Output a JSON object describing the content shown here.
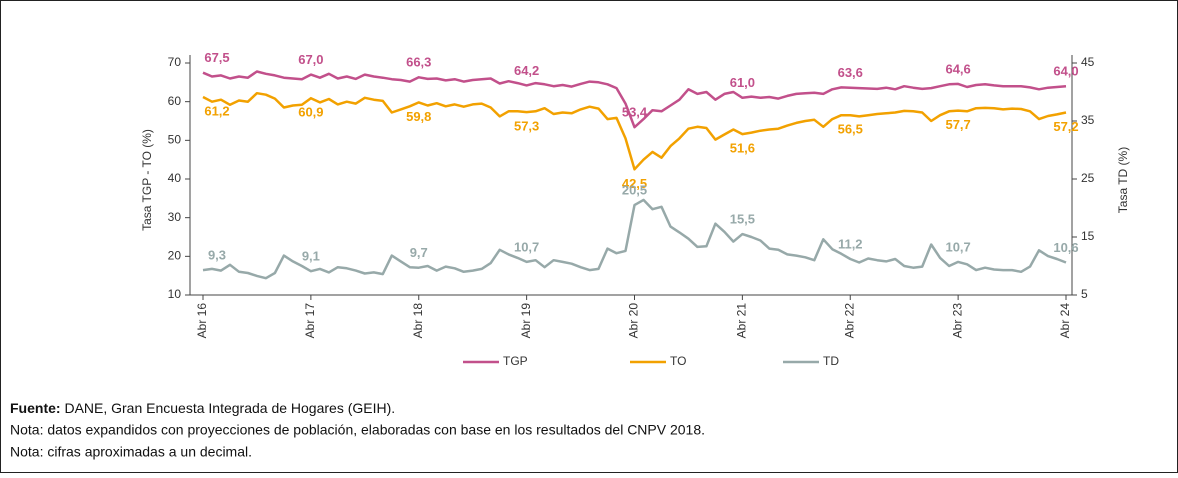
{
  "chart_data": {
    "type": "line",
    "ylabel": "Tasa TGP - TO (%)",
    "y2label": "Tasa TD (%)",
    "categories": [
      "Abr 16",
      null,
      null,
      null,
      null,
      null,
      null,
      null,
      null,
      null,
      null,
      null,
      "Abr 17",
      null,
      null,
      null,
      null,
      null,
      null,
      null,
      null,
      null,
      null,
      null,
      "Abr 18",
      null,
      null,
      null,
      null,
      null,
      null,
      null,
      null,
      null,
      null,
      null,
      "Abr 19",
      null,
      null,
      null,
      null,
      null,
      null,
      null,
      null,
      null,
      null,
      null,
      "Abr 20",
      null,
      null,
      null,
      null,
      null,
      null,
      null,
      null,
      null,
      null,
      null,
      "Abr 21",
      null,
      null,
      null,
      null,
      null,
      null,
      null,
      null,
      null,
      null,
      null,
      "Abr 22",
      null,
      null,
      null,
      null,
      null,
      null,
      null,
      null,
      null,
      null,
      null,
      "Abr 23",
      null,
      null,
      null,
      null,
      null,
      null,
      null,
      null,
      null,
      null,
      null,
      "Abr 24"
    ],
    "ylim": [
      10,
      70
    ],
    "yticks": [
      10,
      20,
      30,
      40,
      50,
      60,
      70
    ],
    "y2lim": [
      5,
      45
    ],
    "y2ticks": [
      5,
      15,
      25,
      35,
      45
    ],
    "legend": "bottom",
    "series": [
      {
        "name": "TGP",
        "color": "#c2508b",
        "label_position": "above",
        "values": [
          67.5,
          66.5,
          66.8,
          66.0,
          66.5,
          66.2,
          67.8,
          67.2,
          66.8,
          66.2,
          66.0,
          65.8,
          67.0,
          66.2,
          67.2,
          66.0,
          66.5,
          65.9,
          67.0,
          66.5,
          66.2,
          65.8,
          65.6,
          65.2,
          66.3,
          65.9,
          66.0,
          65.5,
          65.8,
          65.2,
          65.6,
          65.8,
          66.0,
          64.7,
          65.3,
          64.8,
          64.2,
          64.8,
          64.5,
          64.0,
          64.3,
          63.9,
          64.6,
          65.2,
          65.0,
          64.5,
          63.5,
          59.5,
          53.4,
          55.5,
          57.8,
          57.5,
          59.0,
          60.5,
          63.2,
          62.0,
          62.5,
          60.5,
          62.0,
          62.5,
          61.0,
          61.3,
          61.0,
          61.2,
          60.8,
          61.5,
          62.0,
          62.2,
          62.3,
          62.0,
          63.2,
          63.7,
          63.6,
          63.5,
          63.4,
          63.3,
          63.6,
          63.2,
          64.0,
          63.6,
          63.3,
          63.5,
          64.0,
          64.5,
          64.6,
          63.8,
          64.3,
          64.5,
          64.2,
          64.0,
          64.0,
          64.0,
          63.7,
          63.2,
          63.6,
          63.8,
          64.0
        ],
        "value_labels": [
          "67,5",
          null,
          null,
          null,
          null,
          null,
          null,
          null,
          null,
          null,
          null,
          null,
          "67,0",
          null,
          null,
          null,
          null,
          null,
          null,
          null,
          null,
          null,
          null,
          null,
          "66,3",
          null,
          null,
          null,
          null,
          null,
          null,
          null,
          null,
          null,
          null,
          null,
          "64,2",
          null,
          null,
          null,
          null,
          null,
          null,
          null,
          null,
          null,
          null,
          null,
          "53,4",
          null,
          null,
          null,
          null,
          null,
          null,
          null,
          null,
          null,
          null,
          null,
          "61,0",
          null,
          null,
          null,
          null,
          null,
          null,
          null,
          null,
          null,
          null,
          null,
          "63,6",
          null,
          null,
          null,
          null,
          null,
          null,
          null,
          null,
          null,
          null,
          null,
          "64,6",
          null,
          null,
          null,
          null,
          null,
          null,
          null,
          null,
          null,
          null,
          null,
          "64,0"
        ]
      },
      {
        "name": "TO",
        "color": "#f2a100",
        "label_position": "below",
        "values": [
          61.2,
          60.0,
          60.5,
          59.2,
          60.3,
          60.0,
          62.2,
          61.8,
          60.8,
          58.5,
          59.0,
          59.2,
          60.9,
          59.8,
          60.7,
          59.3,
          60.0,
          59.5,
          61.0,
          60.5,
          60.2,
          57.2,
          58.0,
          58.8,
          59.8,
          59.0,
          59.6,
          58.8,
          59.3,
          58.7,
          59.3,
          59.5,
          58.5,
          56.2,
          57.5,
          57.5,
          57.3,
          57.5,
          58.3,
          56.8,
          57.2,
          57.0,
          58.0,
          58.7,
          58.2,
          55.5,
          55.8,
          50.5,
          42.5,
          45.0,
          47.0,
          45.5,
          48.5,
          50.5,
          53.0,
          53.5,
          53.2,
          50.2,
          51.5,
          52.8,
          51.6,
          52.0,
          52.5,
          52.8,
          53.0,
          53.8,
          54.5,
          55.0,
          55.3,
          53.5,
          55.5,
          56.5,
          56.5,
          56.2,
          56.5,
          56.8,
          57.0,
          57.2,
          57.6,
          57.5,
          57.2,
          55.0,
          56.5,
          57.5,
          57.7,
          57.5,
          58.3,
          58.4,
          58.3,
          58.0,
          58.2,
          58.1,
          57.5,
          55.5,
          56.3,
          56.7,
          57.2
        ],
        "value_labels": [
          "61,2",
          null,
          null,
          null,
          null,
          null,
          null,
          null,
          null,
          null,
          null,
          null,
          "60,9",
          null,
          null,
          null,
          null,
          null,
          null,
          null,
          null,
          null,
          null,
          null,
          "59,8",
          null,
          null,
          null,
          null,
          null,
          null,
          null,
          null,
          null,
          null,
          null,
          "57,3",
          null,
          null,
          null,
          null,
          null,
          null,
          null,
          null,
          null,
          null,
          null,
          "42,5",
          null,
          null,
          null,
          null,
          null,
          null,
          null,
          null,
          null,
          null,
          null,
          "51,6",
          null,
          null,
          null,
          null,
          null,
          null,
          null,
          null,
          null,
          null,
          null,
          "56,5",
          null,
          null,
          null,
          null,
          null,
          null,
          null,
          null,
          null,
          null,
          null,
          "57,7",
          null,
          null,
          null,
          null,
          null,
          null,
          null,
          null,
          null,
          null,
          null,
          "57,2"
        ]
      },
      {
        "name": "TD",
        "color": "#97a9a9",
        "axis": "y2",
        "label_position": "above",
        "values": [
          9.3,
          9.5,
          9.2,
          10.2,
          9.0,
          8.8,
          8.3,
          7.9,
          8.8,
          11.8,
          10.8,
          10.0,
          9.1,
          9.5,
          8.9,
          9.8,
          9.6,
          9.2,
          8.7,
          8.9,
          8.6,
          11.8,
          10.8,
          9.8,
          9.7,
          10.0,
          9.2,
          9.9,
          9.6,
          9.0,
          9.2,
          9.5,
          10.5,
          12.8,
          12.0,
          11.4,
          10.7,
          11.0,
          9.8,
          11.0,
          10.7,
          10.4,
          9.8,
          9.3,
          9.5,
          13.0,
          12.2,
          12.6,
          20.5,
          21.4,
          19.8,
          20.2,
          16.8,
          15.8,
          14.7,
          13.3,
          13.4,
          17.3,
          15.9,
          14.2,
          15.5,
          15.0,
          14.4,
          13.0,
          12.8,
          12.0,
          11.8,
          11.5,
          11.0,
          14.6,
          12.9,
          12.1,
          11.2,
          10.6,
          11.3,
          11.0,
          10.8,
          11.2,
          10.0,
          9.7,
          9.9,
          13.7,
          11.4,
          10.0,
          10.7,
          10.3,
          9.3,
          9.7,
          9.4,
          9.3,
          9.3,
          9.0,
          9.9,
          12.7,
          11.7,
          11.2,
          10.6
        ],
        "value_labels": [
          "9,3",
          null,
          null,
          null,
          null,
          null,
          null,
          null,
          null,
          null,
          null,
          null,
          "9,1",
          null,
          null,
          null,
          null,
          null,
          null,
          null,
          null,
          null,
          null,
          null,
          "9,7",
          null,
          null,
          null,
          null,
          null,
          null,
          null,
          null,
          null,
          null,
          null,
          "10,7",
          null,
          null,
          null,
          null,
          null,
          null,
          null,
          null,
          null,
          null,
          null,
          "20,5",
          null,
          null,
          null,
          null,
          null,
          null,
          null,
          null,
          null,
          null,
          null,
          "15,5",
          null,
          null,
          null,
          null,
          null,
          null,
          null,
          null,
          null,
          null,
          null,
          "11,2",
          null,
          null,
          null,
          null,
          null,
          null,
          null,
          null,
          null,
          null,
          null,
          "10,7",
          null,
          null,
          null,
          null,
          null,
          null,
          null,
          null,
          null,
          null,
          null,
          "10,6"
        ]
      }
    ]
  },
  "footer": {
    "source_label": "Fuente:",
    "source_text": "DANE, Gran Encuesta Integrada de Hogares (GEIH).",
    "notes": [
      "Nota: datos expandidos con proyecciones de población, elaboradas con base en los resultados del CNPV 2018.",
      "Nota: cifras aproximadas a un decimal."
    ]
  }
}
